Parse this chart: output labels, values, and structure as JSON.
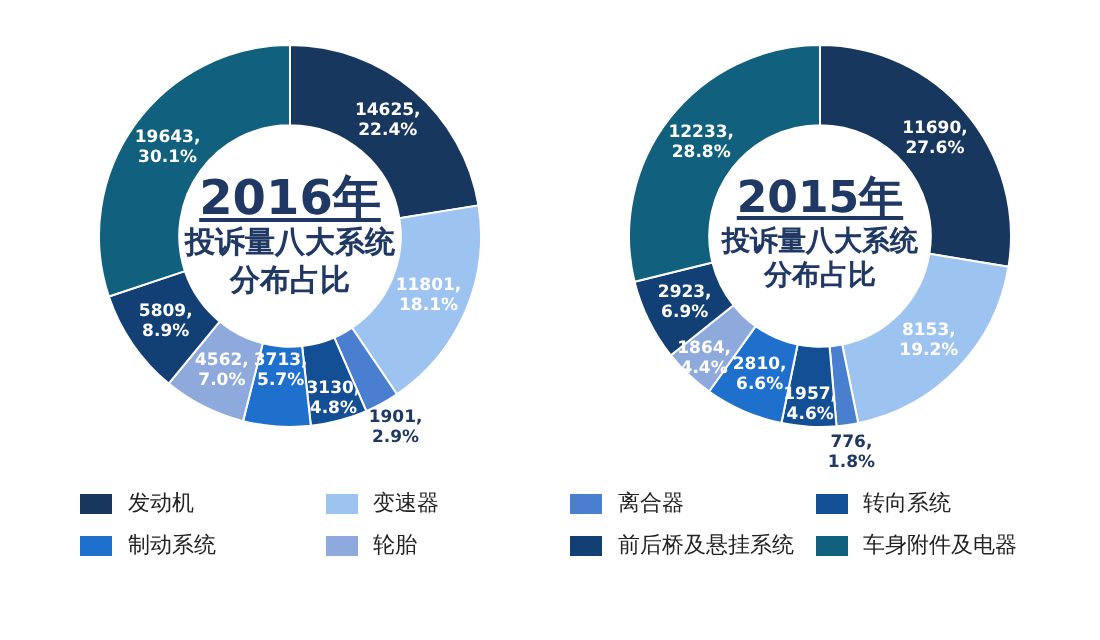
{
  "chart_data": [
    {
      "type": "donut",
      "title": "2016年",
      "subtitle": "投诉量八大系统分布占比",
      "legend": "bottom",
      "data_labels": false,
      "categories": [
        "发动机",
        "变速器",
        "离合器",
        "转向系统",
        "制动系统",
        "轮胎",
        "前后桥及悬挂系统",
        "车身附件及电器"
      ],
      "values": [
        14625,
        11801,
        1901,
        3130,
        3713,
        4562,
        5809,
        19643
      ],
      "value_labels": [
        "14625,\n22.4%",
        "11801,\n18.1%",
        "1901,\n2.9%",
        "3130,\n4.8%",
        "3713,\n5.7%",
        "4562,\n7.0%",
        "5809,\n8.9%",
        "19643,\n30.1%"
      ],
      "colors": [
        "#17375e",
        "#9dc3f0",
        "#4a7fcf",
        "#134f94",
        "#1f6fcc",
        "#8ea9db",
        "#123f74",
        "#10607e"
      ]
    },
    {
      "type": "donut",
      "title": "2015年",
      "subtitle": "投诉量八大系统分布占比",
      "data_labels": false,
      "categories": [
        null,
        null,
        null,
        null,
        null,
        null,
        null,
        null
      ],
      "values": [
        11690,
        8153,
        776,
        1957,
        2810,
        1864,
        2923,
        12233
      ],
      "value_labels": [
        "11690,\n27.6%",
        "8153,\n19.2%",
        "776,\n1.8%",
        "1957,\n4.6%",
        "2810,\n6.6%",
        "1864,\n4.4%",
        "2923,\n6.9%",
        "12233,\n28.8%"
      ],
      "colors": [
        "#17375e",
        "#9dc3f0",
        "#4a7fcf",
        "#134f94",
        "#1f6fcc",
        "#8ea9db",
        "#123f74",
        "#10607e"
      ]
    }
  ]
}
